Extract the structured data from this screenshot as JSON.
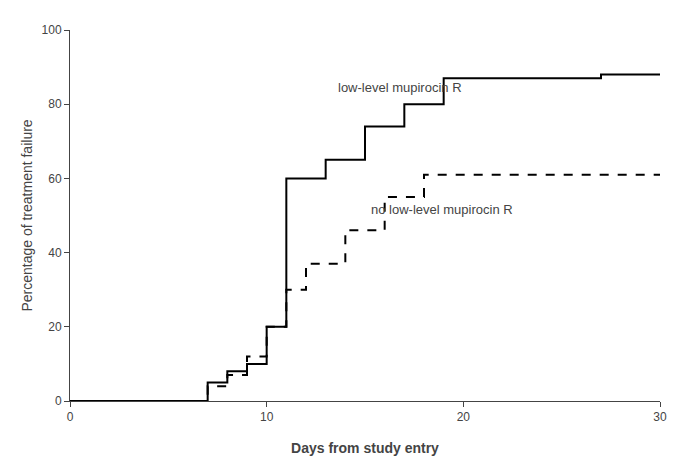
{
  "chart_data": {
    "type": "step",
    "xlabel": "Days from study entry",
    "ylabel": "Percentage of treatment failure",
    "xlim": [
      0,
      30
    ],
    "ylim": [
      0,
      100
    ],
    "xticks": [
      0,
      10,
      20,
      30
    ],
    "yticks": [
      0,
      20,
      40,
      60,
      80,
      100
    ],
    "grid": false,
    "series": [
      {
        "x": [
          0,
          7,
          8,
          9,
          10,
          11,
          13,
          15,
          17,
          19,
          27,
          30
        ],
        "values": [
          0,
          5,
          8,
          10,
          20,
          60,
          65,
          74,
          80,
          87,
          88,
          88
        ],
        "color": "#000000",
        "line_style": "solid"
      },
      {
        "x": [
          0,
          7,
          8,
          9,
          10,
          11,
          12,
          14,
          16,
          18,
          19,
          30
        ],
        "values": [
          0,
          4,
          7,
          12,
          20,
          30,
          37,
          46,
          55,
          61,
          61,
          61
        ],
        "color": "#000000",
        "line_style": "dashed"
      }
    ],
    "annotations": [
      {
        "text": "low-level mupirocin R",
        "x": 13.5,
        "y": 82,
        "color": "#444444"
      },
      {
        "text": "no low-level mupirocin R",
        "x": 15.2,
        "y": 49,
        "color": "#444444"
      }
    ]
  }
}
